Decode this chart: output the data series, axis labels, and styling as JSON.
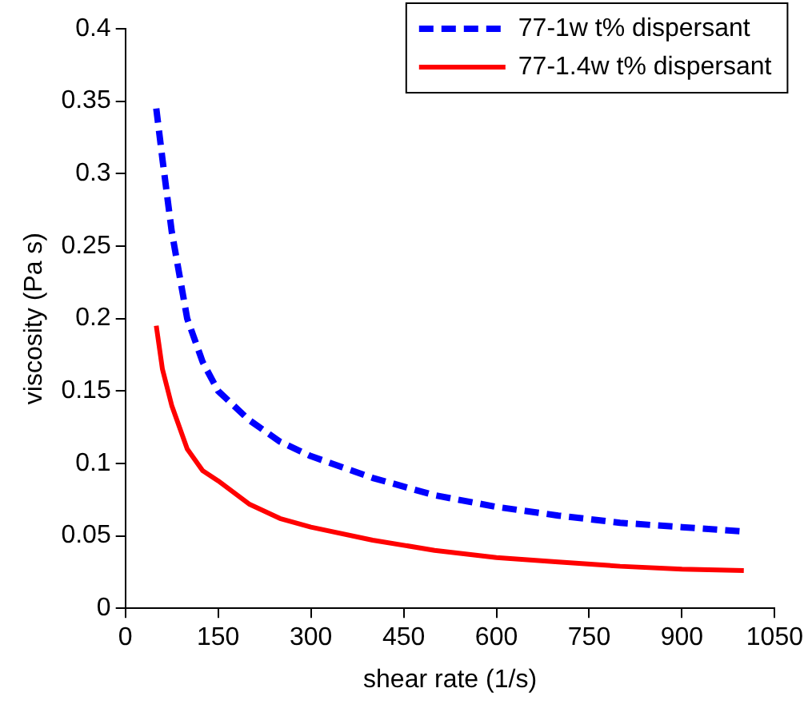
{
  "chart_data": {
    "type": "line",
    "xlabel": "shear rate (1/s)",
    "ylabel": "viscosity (Pa s)",
    "x": [
      50,
      60,
      75,
      100,
      125,
      150,
      200,
      250,
      300,
      400,
      500,
      600,
      700,
      800,
      900,
      1000
    ],
    "series": [
      {
        "name": "77-1w t% dispersant",
        "color": "#0000ff",
        "line_style": "dashed",
        "values": [
          0.345,
          0.31,
          0.26,
          0.2,
          0.17,
          0.15,
          0.13,
          0.115,
          0.105,
          0.09,
          0.078,
          0.07,
          0.064,
          0.059,
          0.056,
          0.053
        ]
      },
      {
        "name": "77-1.4w t% dispersant",
        "color": "#ff0000",
        "line_style": "solid",
        "values": [
          0.195,
          0.165,
          0.14,
          0.11,
          0.095,
          0.088,
          0.072,
          0.062,
          0.056,
          0.047,
          0.04,
          0.035,
          0.032,
          0.029,
          0.027,
          0.026
        ]
      }
    ],
    "xlim": [
      0,
      1050
    ],
    "xticks": [
      0,
      150,
      300,
      450,
      600,
      750,
      900,
      1050
    ],
    "ylim": [
      0,
      0.4
    ],
    "yticks": [
      0,
      0.05,
      0.1,
      0.15,
      0.2,
      0.25,
      0.3,
      0.35,
      0.4
    ],
    "grid": false,
    "legend": "top right",
    "marker": "none"
  }
}
